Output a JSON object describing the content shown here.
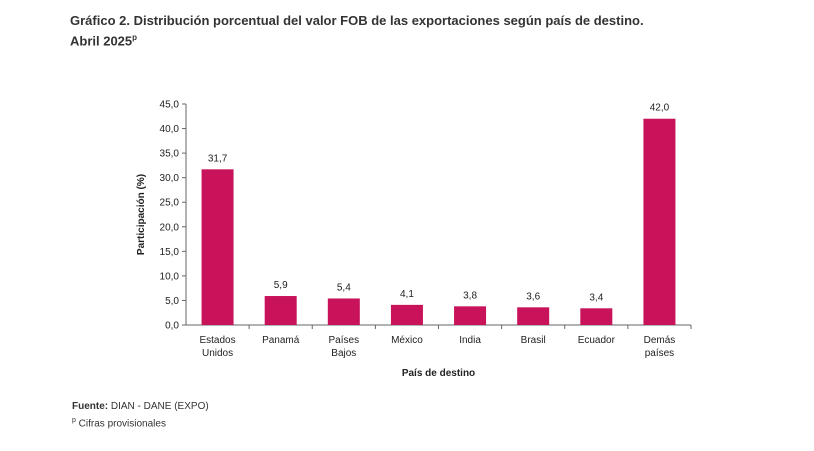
{
  "title": {
    "line1": "Gráfico 2. Distribución porcentual del valor FOB de las exportaciones según país de destino.",
    "line2": "Abril 2025",
    "line2_sup": "p"
  },
  "footer": {
    "source_label": "Fuente:",
    "source_text": " DIAN - DANE (EXPO)",
    "note_sup": "p",
    "note_text": " Cifras provisionales"
  },
  "chart_data": {
    "type": "bar",
    "xlabel": "País de destino",
    "ylabel": "Participación (%)",
    "ylim": [
      0,
      45
    ],
    "ytick_step": 5,
    "grid": false,
    "bar_color": "#c8135a",
    "categories": [
      [
        "Estados",
        "Unidos"
      ],
      [
        "Panamá"
      ],
      [
        "Países",
        "Bajos"
      ],
      [
        "México"
      ],
      [
        "India"
      ],
      [
        "Brasil"
      ],
      [
        "Ecuador"
      ],
      [
        "Demás",
        "países"
      ]
    ],
    "values": [
      31.7,
      5.9,
      5.4,
      4.1,
      3.8,
      3.6,
      3.4,
      42.0
    ]
  }
}
